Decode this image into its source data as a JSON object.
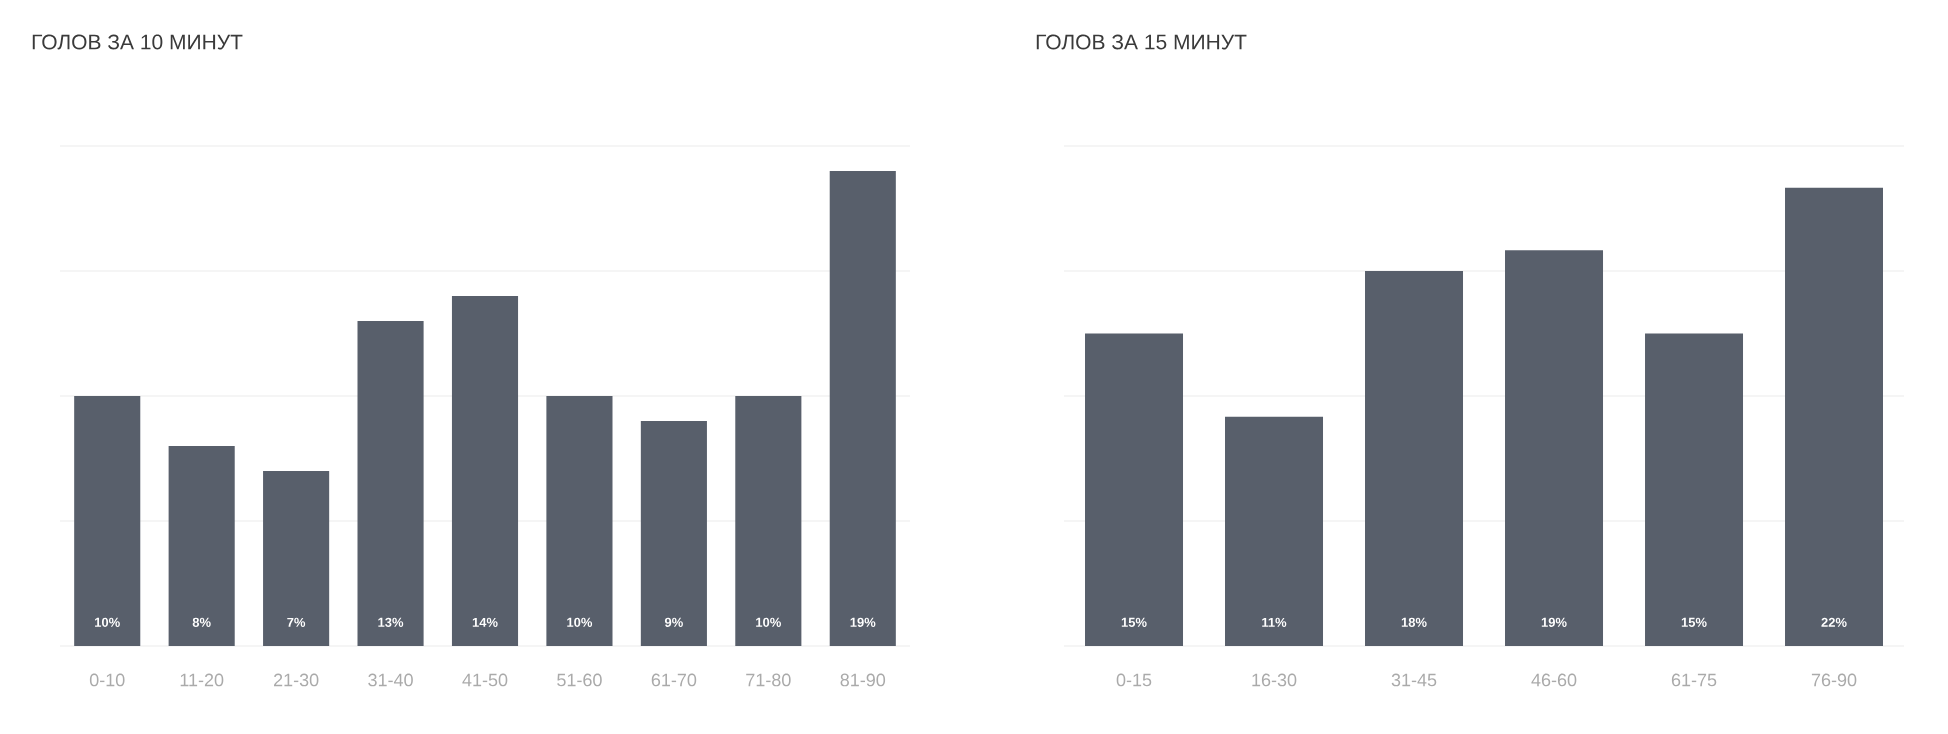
{
  "chart_data": [
    {
      "type": "bar",
      "title": "ГОЛОВ ЗА 10 МИНУТ",
      "categories": [
        "0-10",
        "11-20",
        "21-30",
        "31-40",
        "41-50",
        "51-60",
        "61-70",
        "71-80",
        "81-90"
      ],
      "values": [
        10,
        8,
        7,
        13,
        14,
        10,
        9,
        10,
        19
      ],
      "value_labels": [
        "10%",
        "8%",
        "7%",
        "13%",
        "14%",
        "10%",
        "9%",
        "10%",
        "19%"
      ],
      "color": "#585f6b",
      "ylim": [
        0,
        20
      ],
      "yticks": [
        {
          "value": 0,
          "label": null
        },
        {
          "value": 5,
          "label": null
        },
        {
          "value": 10,
          "label": null
        },
        {
          "value": 15,
          "label": null
        },
        {
          "value": 20,
          "label": null
        }
      ],
      "grid": "y",
      "tick_labels": "x"
    },
    {
      "type": "bar",
      "title": "ГОЛОВ ЗА 15 МИНУТ",
      "categories": [
        "0-15",
        "16-30",
        "31-45",
        "46-60",
        "61-75",
        "76-90"
      ],
      "values": [
        15,
        11,
        18,
        19,
        15,
        22
      ],
      "value_labels": [
        "15%",
        "11%",
        "18%",
        "19%",
        "15%",
        "22%"
      ],
      "color": "#585f6b",
      "ylim": [
        0,
        24
      ],
      "yticks": [
        {
          "value": 0,
          "label": null
        },
        {
          "value": 6,
          "label": null
        },
        {
          "value": 12,
          "label": null
        },
        {
          "value": 18,
          "label": null
        },
        {
          "value": 24,
          "label": null
        }
      ],
      "grid": "y",
      "tick_labels": "x"
    }
  ]
}
